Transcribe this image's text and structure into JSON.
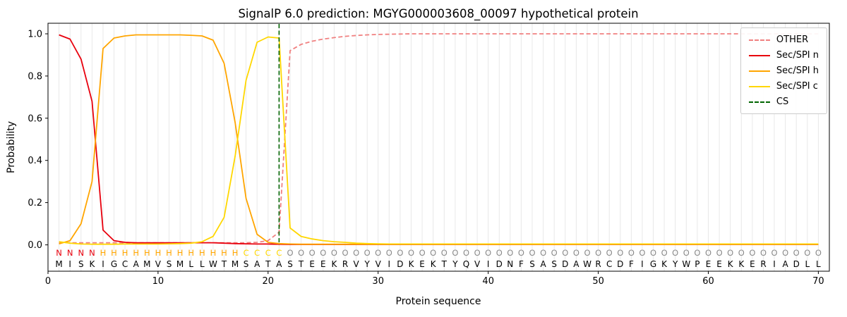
{
  "chart": {
    "title": "SignalP 6.0 prediction: MGYG000003608_00097 hypothetical protein",
    "xlabel": "Protein sequence",
    "ylabel": "Probability",
    "x_ticks": [
      0,
      10,
      20,
      30,
      40,
      50,
      60,
      70
    ],
    "y_ticks": [
      "0.0",
      "0.2",
      "0.4",
      "0.6",
      "0.8",
      "1.0"
    ]
  },
  "chart_data": {
    "type": "line",
    "title": "SignalP 6.0 prediction: MGYG000003608_00097 hypothetical protein",
    "xlabel": "Protein sequence",
    "ylabel": "Probability",
    "xlim": [
      0,
      71
    ],
    "ylim": [
      -0.125,
      1.05
    ],
    "grid": "vertical-per-residue",
    "gridline_color": "#e8e8e8",
    "legend_position": "upper right",
    "sequence": "MISKIGCAMVSMLLWTMSATASTEEKRVYVIDKEKTYQVIDNFSASDAWRCDFIGKYWPEEKKERIADLL",
    "series": [
      {
        "name": "OTHER",
        "color": "#f08080",
        "style": "dashed",
        "values": [
          0.01,
          0.01,
          0.01,
          0.01,
          0.01,
          0.01,
          0.01,
          0.01,
          0.01,
          0.01,
          0.01,
          0.01,
          0.01,
          0.01,
          0.01,
          0.01,
          0.01,
          0.01,
          0.012,
          0.02,
          0.06,
          0.92,
          0.95,
          0.965,
          0.975,
          0.982,
          0.988,
          0.992,
          0.995,
          0.997,
          0.998,
          0.999,
          1.0,
          1.0,
          1.0,
          1.0,
          1.0,
          1.0,
          1.0,
          1.0,
          1.0,
          1.0,
          1.0,
          1.0,
          1.0,
          1.0,
          1.0,
          1.0,
          1.0,
          1.0,
          1.0,
          1.0,
          1.0,
          1.0,
          1.0,
          1.0,
          1.0,
          1.0,
          1.0,
          1.0,
          1.0,
          1.0,
          1.0,
          1.0,
          1.0,
          1.0,
          1.0,
          1.0,
          1.0,
          1.0
        ]
      },
      {
        "name": "Sec/SPI n",
        "color": "#e8000d",
        "style": "solid",
        "values": [
          0.995,
          0.975,
          0.88,
          0.68,
          0.07,
          0.02,
          0.012,
          0.01,
          0.01,
          0.01,
          0.01,
          0.01,
          0.01,
          0.01,
          0.01,
          0.008,
          0.006,
          0.005,
          0.004,
          0.004,
          0.003,
          0.002,
          0.002,
          0.002,
          0.002,
          0.002,
          0.002,
          0.002,
          0.002,
          0.002,
          0.002,
          0.002,
          0.002,
          0.002,
          0.002,
          0.002,
          0.002,
          0.002,
          0.002,
          0.002,
          0.002,
          0.002,
          0.002,
          0.002,
          0.002,
          0.002,
          0.002,
          0.002,
          0.002,
          0.002,
          0.002,
          0.002,
          0.002,
          0.002,
          0.002,
          0.002,
          0.002,
          0.002,
          0.002,
          0.002,
          0.002,
          0.002,
          0.002,
          0.002,
          0.002,
          0.002,
          0.002,
          0.002,
          0.002,
          0.002
        ]
      },
      {
        "name": "Sec/SPI h",
        "color": "#ffa500",
        "style": "solid",
        "values": [
          0.005,
          0.02,
          0.1,
          0.3,
          0.93,
          0.98,
          0.99,
          0.995,
          0.995,
          0.995,
          0.995,
          0.995,
          0.993,
          0.99,
          0.97,
          0.86,
          0.58,
          0.22,
          0.05,
          0.012,
          0.006,
          0.004,
          0.003,
          0.003,
          0.003,
          0.003,
          0.003,
          0.003,
          0.003,
          0.003,
          0.003,
          0.003,
          0.003,
          0.003,
          0.003,
          0.003,
          0.003,
          0.003,
          0.003,
          0.003,
          0.003,
          0.003,
          0.003,
          0.003,
          0.003,
          0.003,
          0.003,
          0.003,
          0.003,
          0.003,
          0.003,
          0.003,
          0.003,
          0.003,
          0.003,
          0.003,
          0.003,
          0.003,
          0.003,
          0.003,
          0.003,
          0.003,
          0.003,
          0.003,
          0.003,
          0.003,
          0.003,
          0.003,
          0.003,
          0.003
        ]
      },
      {
        "name": "Sec/SPI c",
        "color": "#ffd700",
        "style": "solid",
        "values": [
          0.015,
          0.008,
          0.004,
          0.003,
          0.003,
          0.003,
          0.004,
          0.004,
          0.004,
          0.004,
          0.005,
          0.006,
          0.008,
          0.015,
          0.04,
          0.13,
          0.42,
          0.78,
          0.96,
          0.985,
          0.98,
          0.08,
          0.04,
          0.028,
          0.02,
          0.015,
          0.012,
          0.008,
          0.006,
          0.005,
          0.004,
          0.004,
          0.004,
          0.004,
          0.004,
          0.004,
          0.004,
          0.004,
          0.004,
          0.004,
          0.004,
          0.004,
          0.004,
          0.004,
          0.004,
          0.004,
          0.004,
          0.004,
          0.004,
          0.004,
          0.004,
          0.004,
          0.004,
          0.004,
          0.004,
          0.004,
          0.004,
          0.004,
          0.004,
          0.004,
          0.004,
          0.004,
          0.004,
          0.004,
          0.004,
          0.004,
          0.004,
          0.004,
          0.004,
          0.004
        ]
      }
    ],
    "cs_line": {
      "name": "CS",
      "position": 21,
      "color": "#006400",
      "style": "dashed"
    },
    "regions": [
      {
        "label": "N",
        "start": 1,
        "end": 4,
        "color": "#e8000d"
      },
      {
        "label": "H",
        "start": 5,
        "end": 17,
        "color": "#ffa500"
      },
      {
        "label": "C",
        "start": 18,
        "end": 21,
        "color": "#ffd700"
      },
      {
        "label": "O",
        "start": 22,
        "end": 70,
        "color": "#8a8a8a"
      }
    ]
  }
}
